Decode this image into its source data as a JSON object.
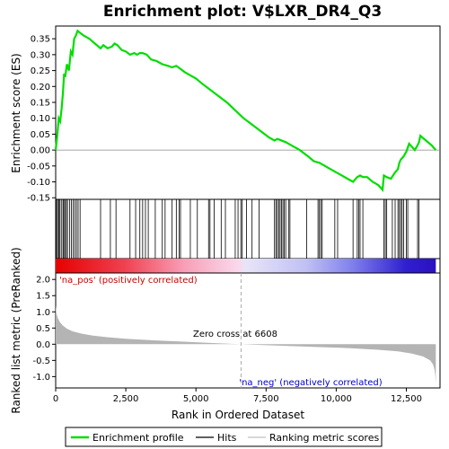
{
  "chart_data": {
    "type": "line",
    "title": "Enrichment plot: V$LXR_DR4_Q3",
    "xlabel": "Rank in Ordered Dataset",
    "ylabel_top": "Enrichment score (ES)",
    "ylabel_bottom": "Ranked list metric (PreRanked)",
    "x_range": [
      0,
      13700
    ],
    "x_ticks": [
      0,
      2500,
      5000,
      7500,
      10000,
      12500
    ],
    "x_tick_labels": [
      "0",
      "2,500",
      "5,000",
      "7,500",
      "10,000",
      "12,500"
    ],
    "es_ylim": [
      -0.155,
      0.39
    ],
    "es_ticks": [
      -0.15,
      -0.1,
      -0.05,
      0.0,
      0.05,
      0.1,
      0.15,
      0.2,
      0.25,
      0.3,
      0.35
    ],
    "es_tick_labels": [
      "-0.15",
      "-0.10",
      "-0.05",
      "0.00",
      "0.05",
      "0.10",
      "0.15",
      "0.20",
      "0.25",
      "0.30",
      "0.35"
    ],
    "metric_ylim": [
      -1.35,
      2.2
    ],
    "metric_ticks": [
      -1.0,
      -0.5,
      0.0,
      0.5,
      1.0,
      1.5,
      2.0
    ],
    "metric_tick_labels": [
      "-1.0",
      "-0.5",
      "0.0",
      "0.5",
      "1.0",
      "1.5",
      "2.0"
    ],
    "series": [
      {
        "name": "Enrichment profile",
        "color": "#00dd00",
        "x": [
          0,
          60,
          110,
          160,
          210,
          260,
          300,
          340,
          400,
          470,
          540,
          600,
          660,
          720,
          780,
          850,
          1000,
          1200,
          1400,
          1600,
          1700,
          1850,
          2000,
          2100,
          2200,
          2350,
          2500,
          2650,
          2800,
          2900,
          3000,
          3100,
          3250,
          3400,
          3600,
          3800,
          4000,
          4150,
          4300,
          4450,
          4600,
          4800,
          5000,
          5200,
          5500,
          5800,
          6100,
          6400,
          6700,
          7000,
          7300,
          7600,
          7800,
          7900,
          8000,
          8200,
          8400,
          8700,
          9000,
          9200,
          9400,
          9600,
          9800,
          10000,
          10200,
          10400,
          10600,
          10750,
          10850,
          10950,
          11100,
          11300,
          11500,
          11650,
          11700,
          11800,
          11950,
          12100,
          12200,
          12250,
          12300,
          12400,
          12500,
          12600,
          12700,
          12800,
          12900,
          12950,
          13000,
          13200,
          13400,
          13550
        ],
        "y": [
          0.0,
          0.05,
          0.1,
          0.09,
          0.13,
          0.18,
          0.24,
          0.23,
          0.27,
          0.25,
          0.31,
          0.3,
          0.35,
          0.36,
          0.375,
          0.37,
          0.36,
          0.35,
          0.335,
          0.32,
          0.33,
          0.32,
          0.325,
          0.335,
          0.33,
          0.315,
          0.31,
          0.3,
          0.305,
          0.3,
          0.305,
          0.305,
          0.3,
          0.285,
          0.28,
          0.27,
          0.265,
          0.26,
          0.265,
          0.255,
          0.245,
          0.235,
          0.225,
          0.21,
          0.19,
          0.17,
          0.15,
          0.125,
          0.1,
          0.08,
          0.06,
          0.04,
          0.03,
          0.035,
          0.032,
          0.025,
          0.015,
          0.0,
          -0.02,
          -0.035,
          -0.04,
          -0.05,
          -0.06,
          -0.07,
          -0.08,
          -0.09,
          -0.1,
          -0.085,
          -0.08,
          -0.085,
          -0.085,
          -0.1,
          -0.11,
          -0.125,
          -0.08,
          -0.085,
          -0.09,
          -0.07,
          -0.06,
          -0.04,
          -0.03,
          -0.02,
          -0.005,
          0.02,
          0.01,
          0.0,
          0.015,
          0.025,
          0.045,
          0.03,
          0.015,
          0.0
        ]
      },
      {
        "name": "Hits",
        "color": "#000000"
      },
      {
        "name": "Ranking metric scores",
        "color": "#c0c0c0"
      }
    ],
    "hits": [
      30,
      70,
      110,
      150,
      200,
      260,
      290,
      330,
      380,
      420,
      500,
      560,
      620,
      680,
      740,
      800,
      870,
      1600,
      1950,
      2150,
      2650,
      2850,
      3000,
      3100,
      3200,
      3300,
      3550,
      3800,
      3900,
      4150,
      4300,
      4400,
      4450,
      4800,
      5050,
      5450,
      5500,
      5650,
      5900,
      6050,
      6400,
      6500,
      6600,
      6650,
      6800,
      7000,
      7250,
      7800,
      7850,
      7900,
      7950,
      8000,
      8050,
      8100,
      8150,
      8200,
      8300,
      8350,
      8950,
      9350,
      9400,
      9450,
      9500,
      9950,
      10050,
      10600,
      10750,
      10800,
      10850,
      10950,
      11700,
      11750,
      11800,
      12000,
      12100,
      12200,
      12250,
      12300,
      12350,
      12400,
      12500,
      12550,
      12900,
      12950
    ],
    "metric_curve": {
      "x": [
        0,
        30,
        80,
        150,
        250,
        400,
        600,
        900,
        1300,
        1800,
        2500,
        3500,
        4500,
        5500,
        6608,
        7500,
        8500,
        9500,
        10500,
        11500,
        12200,
        12700,
        13100,
        13350,
        13450,
        13500,
        13530,
        13550
      ],
      "y": [
        1.2,
        0.95,
        0.8,
        0.68,
        0.58,
        0.48,
        0.4,
        0.33,
        0.27,
        0.22,
        0.17,
        0.12,
        0.08,
        0.04,
        0.0,
        -0.03,
        -0.06,
        -0.09,
        -0.12,
        -0.17,
        -0.22,
        -0.29,
        -0.38,
        -0.5,
        -0.62,
        -0.78,
        -0.95,
        -1.2
      ]
    },
    "zero_cross": 6608,
    "annotations": {
      "zero_cross_label": "Zero cross at 6608",
      "pos_label": "'na_pos' (positively correlated)",
      "neg_label": "'na_neg' (negatively correlated)"
    },
    "legend_placement": "bottom",
    "grid": false
  },
  "colors": {
    "pos_label": "#cc0000",
    "neg_label": "#0000cc",
    "es_line": "#00dd00",
    "metric_fill": "#b4b4b4",
    "zero_line": "#aaaaaa"
  }
}
